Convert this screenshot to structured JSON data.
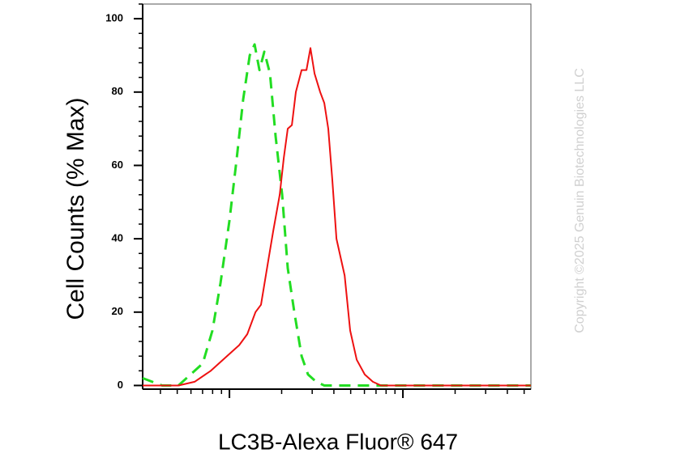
{
  "chart_data": {
    "type": "line",
    "y_label": "Cell Counts (% Max)",
    "x_label": "LC3B-Alexa Fluor® 647",
    "copyright": "Copyright ©2025 Genuin Biotechnologies LLC",
    "x_log": true,
    "xlim": [
      316,
      54700
    ],
    "xticks": [
      1000,
      10000
    ],
    "ylim": [
      -1,
      104
    ],
    "yticks": [
      0,
      20,
      40,
      60,
      80,
      100
    ],
    "series": [
      {
        "color": "#22dd22",
        "dashed": true,
        "x": [
          316,
          409,
          508,
          597,
          701,
          798,
          889,
          1000,
          1102,
          1200,
          1309,
          1396,
          1489,
          1589,
          1714,
          1845,
          2014,
          2168,
          2366,
          2606,
          2838,
          3162,
          3524,
          4365,
          54700
        ],
        "values": [
          2,
          0,
          0,
          3,
          6,
          15,
          28,
          45,
          62,
          78,
          90,
          93,
          86,
          91,
          85,
          68,
          52,
          32,
          20,
          8,
          3,
          1,
          0,
          0,
          0
        ]
      },
      {
        "color": "#ee1111",
        "dashed": false,
        "x": [
          316,
          508,
          630,
          781,
          968,
          1138,
          1268,
          1413,
          1521,
          1660,
          1786,
          1950,
          2056,
          2168,
          2291,
          2415,
          2606,
          2780,
          2931,
          3097,
          3334,
          3524,
          3715,
          3920,
          4140,
          4613,
          4966,
          5420,
          6026,
          6714,
          7482,
          54700
        ],
        "values": [
          0,
          0,
          1,
          4,
          8,
          11,
          14,
          20,
          22,
          33,
          42,
          52,
          62,
          70,
          71,
          80,
          86,
          86,
          92,
          85,
          80,
          77,
          70,
          56,
          40,
          30,
          15,
          7,
          3,
          1,
          0,
          0
        ]
      }
    ]
  }
}
